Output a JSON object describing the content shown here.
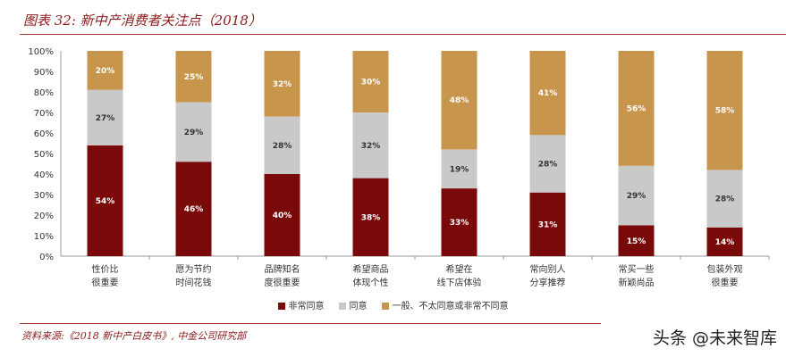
{
  "title": "图表 32: 新中产消费者关注点（2018）",
  "source": "资料来源:《2018 新中产白皮书》, 中金公司研究部",
  "watermark": "头条 @未来智库",
  "chart_data": {
    "type": "stacked-bar",
    "categories": [
      [
        "性价比",
        "很重要"
      ],
      [
        "愿为节约",
        "时间花钱"
      ],
      [
        "品牌知名",
        "度很重要"
      ],
      [
        "希望商品",
        "体现个性"
      ],
      [
        "希望在",
        "线下店体验"
      ],
      [
        "常向别人",
        "分享推荐"
      ],
      [
        "常买一些",
        "新颖尚品"
      ],
      [
        "包装外观",
        "很重要"
      ]
    ],
    "series": [
      {
        "name": "非常同意",
        "color": "#7a0a0a",
        "label_color": "#ffffff",
        "values": [
          54,
          46,
          40,
          38,
          33,
          31,
          15,
          14
        ]
      },
      {
        "name": "同意",
        "color": "#c9c9c9",
        "label_color": "#333333",
        "values": [
          27,
          29,
          28,
          32,
          19,
          28,
          29,
          28
        ]
      },
      {
        "name": "一般、不太同意或非常不同意",
        "color": "#c8954c",
        "label_color": "#ffffff",
        "values": [
          20,
          25,
          32,
          30,
          48,
          41,
          56,
          58
        ]
      }
    ],
    "ylim": [
      0,
      100
    ],
    "yticks": [
      "0%",
      "10%",
      "20%",
      "30%",
      "40%",
      "50%",
      "60%",
      "70%",
      "80%",
      "90%",
      "100%"
    ],
    "legend": "bottom"
  }
}
